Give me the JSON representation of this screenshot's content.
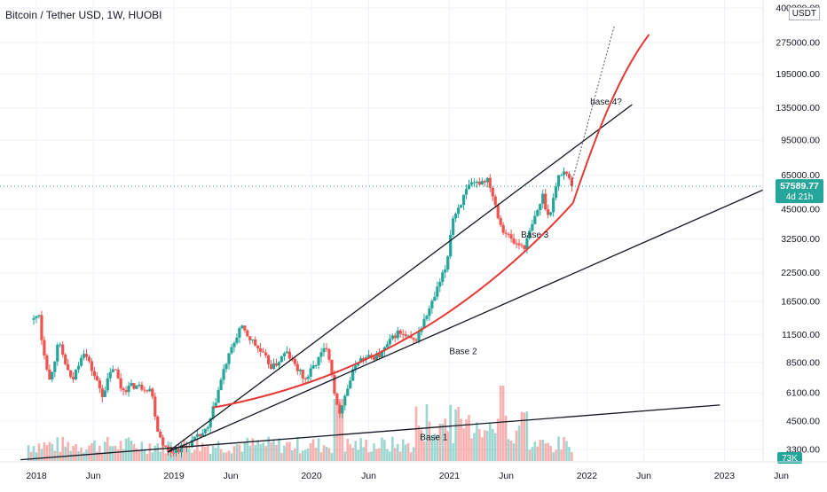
{
  "chart_title": "Bitcoin / Tether USD, 1W, HUOBI",
  "currency_badge": "USDT",
  "colors": {
    "up": "#26a69a",
    "down": "#ef5350",
    "trend_black": "#131722",
    "trend_red": "#e53935",
    "last_price_bg": "#26a69a",
    "grid": "#f0f3fa"
  },
  "chart_data": {
    "type": "candlestick",
    "yscale": "log",
    "y_ticks": [
      "400000.00",
      "275000.00",
      "195000.00",
      "135000.00",
      "95000.00",
      "65000.00",
      "45000.00",
      "32500.00",
      "22500.00",
      "16500.00",
      "11500.00",
      "8500.00",
      "6100.00",
      "4500.00",
      "3300.00"
    ],
    "x_ticks": [
      "2018",
      "Jun",
      "2019",
      "Jun",
      "2020",
      "Jun",
      "2021",
      "Jun",
      "2022",
      "Jun",
      "2023",
      "Jun"
    ],
    "last_price": "57589.77",
    "countdown": "4d 21h",
    "volume_label": "73K",
    "annotations": [
      "Base 1",
      "Base 2",
      "Base 3",
      "base 4?"
    ],
    "price_path": [
      [
        "2017-12-25",
        13500
      ],
      [
        "2018-01-08",
        14500
      ],
      [
        "2018-01-15",
        11000
      ],
      [
        "2018-02-05",
        7000
      ],
      [
        "2018-03-01",
        10500
      ],
      [
        "2018-04-05",
        6800
      ],
      [
        "2018-05-05",
        9800
      ],
      [
        "2018-06-25",
        6000
      ],
      [
        "2018-07-25",
        8200
      ],
      [
        "2018-08-15",
        6300
      ],
      [
        "2018-09-15",
        6600
      ],
      [
        "2018-11-01",
        6400
      ],
      [
        "2018-11-20",
        4000
      ],
      [
        "2018-12-15",
        3200
      ],
      [
        "2019-02-01",
        3400
      ],
      [
        "2019-04-01",
        4100
      ],
      [
        "2019-05-15",
        8000
      ],
      [
        "2019-06-26",
        12500
      ],
      [
        "2019-08-01",
        10500
      ],
      [
        "2019-09-20",
        8000
      ],
      [
        "2019-10-26",
        9500
      ],
      [
        "2019-12-15",
        7000
      ],
      [
        "2020-02-12",
        10300
      ],
      [
        "2020-03-12",
        4800
      ],
      [
        "2020-05-01",
        8700
      ],
      [
        "2020-07-01",
        9200
      ],
      [
        "2020-08-15",
        11800
      ],
      [
        "2020-10-01",
        10600
      ],
      [
        "2020-11-15",
        16000
      ],
      [
        "2020-12-25",
        24500
      ],
      [
        "2021-01-08",
        40000
      ],
      [
        "2021-02-21",
        57000
      ],
      [
        "2021-04-14",
        63000
      ],
      [
        "2021-05-19",
        37000
      ],
      [
        "2021-06-22",
        31000
      ],
      [
        "2021-07-20",
        30000
      ],
      [
        "2021-09-06",
        52000
      ],
      [
        "2021-09-21",
        41000
      ],
      [
        "2021-10-20",
        66000
      ],
      [
        "2021-11-10",
        68000
      ],
      [
        "2021-11-22",
        57589.77
      ]
    ],
    "trendlines": [
      {
        "label": "Base 1",
        "color": "black",
        "from": [
          "2017-11-20",
          2950
        ],
        "to": [
          "2022-12-20",
          5350
        ]
      },
      {
        "label": "Base 2",
        "color": "black",
        "from": [
          "2018-12-15",
          3200
        ],
        "to": [
          "2023-06-15",
          62000
        ]
      },
      {
        "label": "Base 3",
        "color": "black",
        "from": [
          "2018-12-15",
          3200
        ],
        "to": [
          "2022-05-01",
          140000
        ]
      }
    ]
  }
}
